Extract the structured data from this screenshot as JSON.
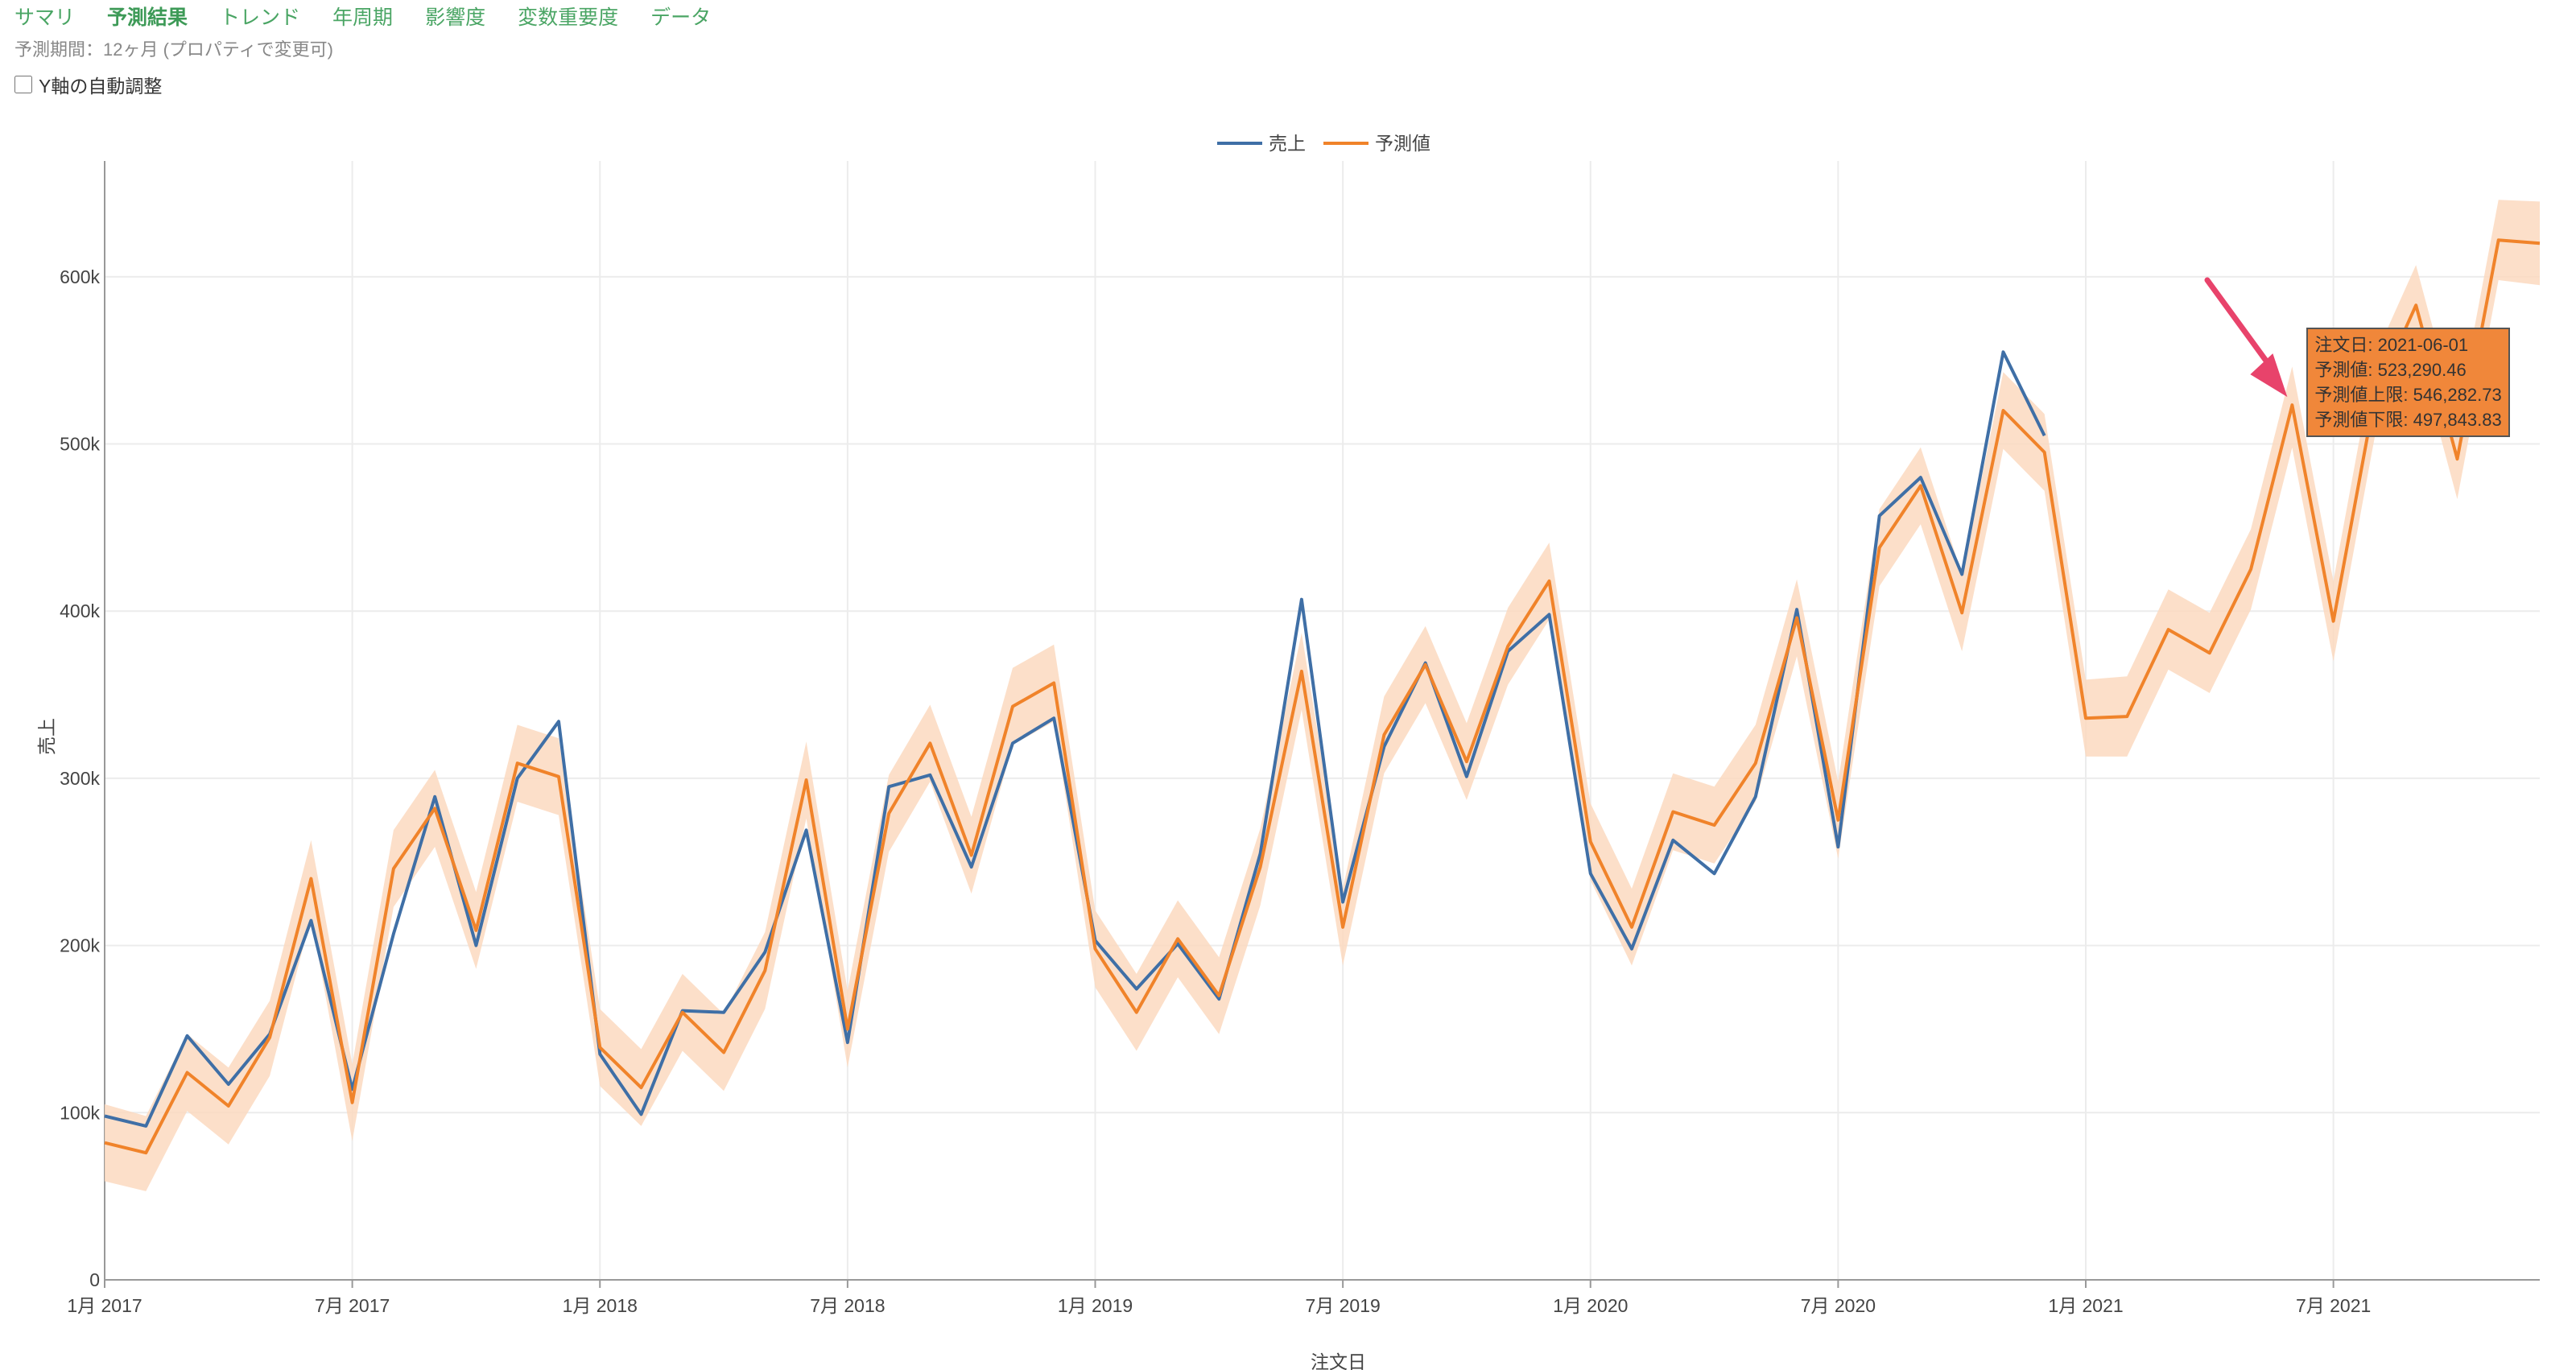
{
  "tabs": [
    {
      "label": "サマリ",
      "active": false
    },
    {
      "label": "予測結果",
      "active": true
    },
    {
      "label": "トレンド",
      "active": false
    },
    {
      "label": "年周期",
      "active": false
    },
    {
      "label": "影響度",
      "active": false
    },
    {
      "label": "変数重要度",
      "active": false
    },
    {
      "label": "データ",
      "active": false
    }
  ],
  "subtitle": "予測期間：12ヶ月 (プロパティで変更可)",
  "autoscale_label": "Y軸の自動調整",
  "tooltip": {
    "lines": [
      "注文日: 2021-06-01",
      "予測値: 523,290.46",
      "予測値上限: 546,282.73",
      "予測値下限: 497,843.83"
    ]
  },
  "colors": {
    "actual": "#3f6fa6",
    "forecast": "#f0832a",
    "band": "#fbd9c0",
    "arrow": "#e8436b",
    "tab": "#4aa564"
  },
  "chart_data": {
    "type": "line",
    "xlabel": "注文日",
    "ylabel": "売上",
    "ylim": [
      0,
      650000
    ],
    "yticks": [
      0,
      100000,
      200000,
      300000,
      400000,
      500000,
      600000
    ],
    "ytick_labels": [
      "0",
      "100k",
      "200k",
      "300k",
      "400k",
      "500k",
      "600k"
    ],
    "xtick_labels": [
      "1月 2017",
      "7月 2017",
      "1月 2018",
      "7月 2018",
      "1月 2019",
      "7月 2019",
      "1月 2020",
      "7月 2020",
      "1月 2021",
      "7月 2021"
    ],
    "start_month": "2017-01",
    "legend": {
      "placement": "top-center"
    },
    "series": [
      {
        "name": "売上",
        "values": [
          98000,
          92000,
          146000,
          117000,
          147000,
          215000,
          114000,
          207000,
          289000,
          200000,
          300000,
          334000,
          135000,
          99000,
          161000,
          160000,
          196000,
          269000,
          142000,
          295000,
          302000,
          247000,
          321000,
          336000,
          203000,
          174000,
          201000,
          168000,
          255000,
          407000,
          226000,
          319000,
          369000,
          301000,
          376000,
          398000,
          243000,
          198000,
          263000,
          243000,
          289000,
          401000,
          259000,
          457000,
          480000,
          422000,
          555000,
          505000
        ]
      },
      {
        "name": "予測値",
        "values": [
          82000,
          76000,
          124000,
          104000,
          145000,
          240000,
          106000,
          246000,
          282000,
          209000,
          309000,
          301000,
          139000,
          115000,
          160000,
          136000,
          185000,
          299000,
          150000,
          279000,
          321000,
          254000,
          343000,
          357000,
          198000,
          160000,
          204000,
          170000,
          247000,
          364000,
          211000,
          326000,
          368000,
          310000,
          379000,
          418000,
          262000,
          211000,
          280000,
          272000,
          309000,
          396000,
          275000,
          438000,
          475000,
          399000,
          520000,
          495000,
          336000,
          337000,
          389000,
          375000,
          425000,
          523290,
          394000,
          528000,
          583000,
          491000,
          622000,
          620000
        ]
      },
      {
        "name": "予測値上限",
        "values": [
          105000,
          98000,
          147000,
          127000,
          167000,
          263000,
          129000,
          269000,
          305000,
          232000,
          332000,
          324000,
          162000,
          138000,
          183000,
          159000,
          208000,
          322000,
          173000,
          302000,
          344000,
          277000,
          366000,
          380000,
          221000,
          183000,
          227000,
          193000,
          270000,
          387000,
          234000,
          349000,
          391000,
          333000,
          402000,
          441000,
          285000,
          234000,
          303000,
          295000,
          332000,
          419000,
          298000,
          461000,
          498000,
          422000,
          543000,
          518000,
          359000,
          361000,
          413000,
          399000,
          449000,
          546283,
          418000,
          552000,
          607000,
          515000,
          646000,
          645000
        ]
      },
      {
        "name": "予測値下限",
        "values": [
          59000,
          53000,
          101000,
          81000,
          122000,
          217000,
          83000,
          223000,
          259000,
          186000,
          286000,
          278000,
          116000,
          92000,
          137000,
          113000,
          162000,
          276000,
          127000,
          256000,
          298000,
          231000,
          320000,
          334000,
          175000,
          137000,
          181000,
          147000,
          224000,
          341000,
          188000,
          303000,
          345000,
          287000,
          356000,
          395000,
          239000,
          188000,
          257000,
          249000,
          286000,
          373000,
          252000,
          415000,
          452000,
          376000,
          497000,
          472000,
          313000,
          313000,
          365000,
          351000,
          401000,
          497844,
          370000,
          504000,
          559000,
          467000,
          598000,
          595000
        ]
      }
    ],
    "highlight_index": 53
  }
}
